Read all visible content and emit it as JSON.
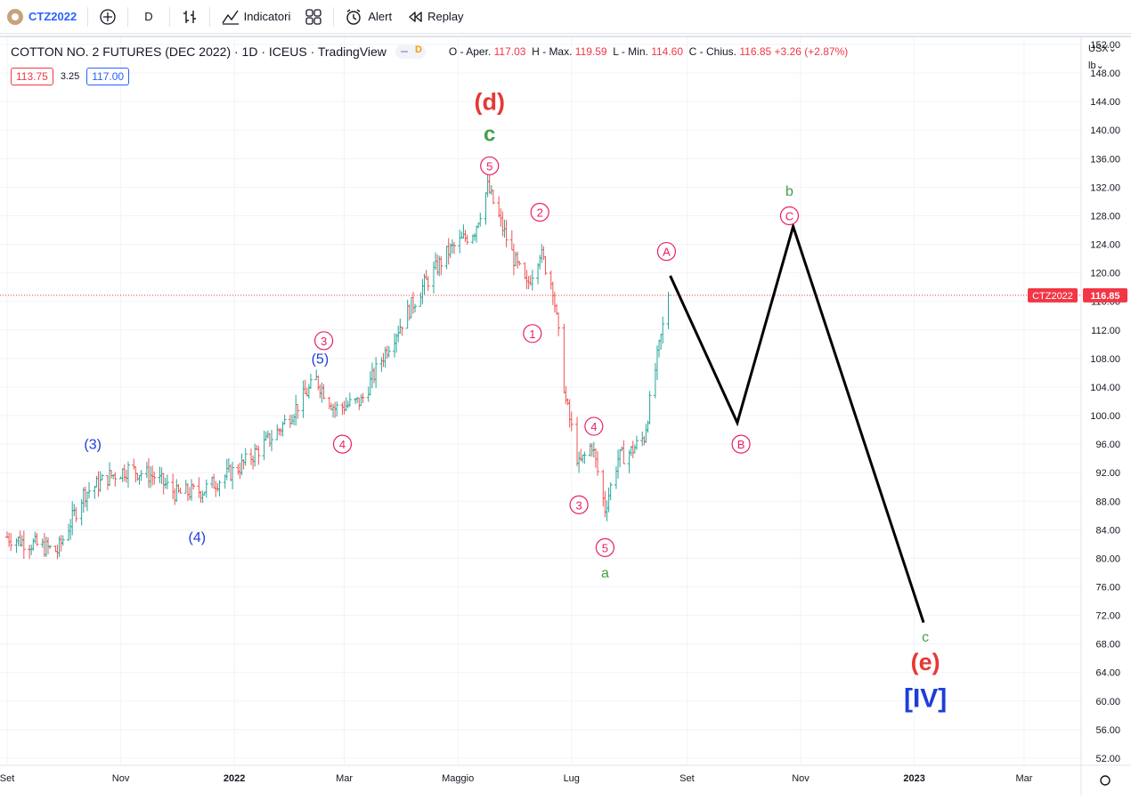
{
  "toolbar": {
    "symbol": "CTZ2022",
    "interval": "D",
    "indicators_label": "Indicatori",
    "alert_label": "Alert",
    "replay_label": "Replay"
  },
  "legend": {
    "title": "COTTON NO. 2 FUTURES (DEC 2022) · 1D · ICEUS · TradingView",
    "badge": "D",
    "o_label": "O - Aper.",
    "o_value": "117.03",
    "h_label": "H - Max.",
    "h_value": "119.59",
    "l_label": "L - Min.",
    "l_value": "114.60",
    "c_label": "C - Chius.",
    "c_value": "116.85",
    "change": "+3.26 (+2.87%)",
    "bid": "113.75",
    "spread": "3.25",
    "ask": "117.00"
  },
  "scale": {
    "currency": "USX",
    "unit": "lb"
  },
  "chart_data": {
    "type": "bar",
    "title": "COTTON NO. 2 FUTURES (DEC 2022)",
    "x_tick_labels": [
      "Set",
      "Nov",
      "2022",
      "Mar",
      "Maggio",
      "Lug",
      "Set",
      "Nov",
      "2023",
      "Mar"
    ],
    "y_ticks": [
      52,
      56,
      60,
      64,
      68,
      72,
      76,
      80,
      84,
      88,
      92,
      96,
      100,
      104,
      108,
      112,
      116,
      120,
      124,
      128,
      132,
      136,
      140,
      144,
      148,
      152
    ],
    "ylim": [
      51,
      152
    ],
    "last_price": 116.85,
    "last_price_label": "CTZ2022",
    "last_price_value": "116.85",
    "price_path_weekly": [
      {
        "x": "2021-09-01",
        "y": 83.0
      },
      {
        "x": "2021-09-15",
        "y": 82.0
      },
      {
        "x": "2021-09-28",
        "y": 81.0
      },
      {
        "x": "2021-10-12",
        "y": 89.0
      },
      {
        "x": "2021-10-26",
        "y": 91.5
      },
      {
        "x": "2021-11-05",
        "y": 92.5
      },
      {
        "x": "2021-11-19",
        "y": 91.5
      },
      {
        "x": "2021-12-01",
        "y": 89.0
      },
      {
        "x": "2021-12-15",
        "y": 89.5
      },
      {
        "x": "2022-01-05",
        "y": 93.0
      },
      {
        "x": "2022-01-25",
        "y": 98.0
      },
      {
        "x": "2022-02-14",
        "y": 105.0
      },
      {
        "x": "2022-02-24",
        "y": 101.0
      },
      {
        "x": "2022-03-10",
        "y": 102.0
      },
      {
        "x": "2022-03-25",
        "y": 110.0
      },
      {
        "x": "2022-04-12",
        "y": 118.0
      },
      {
        "x": "2022-04-26",
        "y": 123.0
      },
      {
        "x": "2022-05-10",
        "y": 126.0
      },
      {
        "x": "2022-05-17",
        "y": 132.0
      },
      {
        "x": "2022-05-31",
        "y": 122.0
      },
      {
        "x": "2022-06-07",
        "y": 118.0
      },
      {
        "x": "2022-06-14",
        "y": 123.0
      },
      {
        "x": "2022-06-21",
        "y": 118.0
      },
      {
        "x": "2022-06-28",
        "y": 102.0
      },
      {
        "x": "2022-07-05",
        "y": 93.0
      },
      {
        "x": "2022-07-12",
        "y": 96.0
      },
      {
        "x": "2022-07-19",
        "y": 87.0
      },
      {
        "x": "2022-07-26",
        "y": 94.0
      },
      {
        "x": "2022-08-02",
        "y": 95.0
      },
      {
        "x": "2022-08-09",
        "y": 97.0
      },
      {
        "x": "2022-08-16",
        "y": 108.0
      },
      {
        "x": "2022-08-22",
        "y": 116.85
      }
    ],
    "projection": [
      {
        "x": "2022-08-23",
        "y": 119.6
      },
      {
        "x": "2022-09-28",
        "y": 99.0
      },
      {
        "x": "2022-10-28",
        "y": 126.5
      },
      {
        "x": "2023-01-06",
        "y": 71.0
      }
    ],
    "annotations": [
      {
        "text": "(3)",
        "x": "2021-10-17",
        "y": 96.0,
        "color": "#1e3ed6",
        "style": "plain"
      },
      {
        "text": "(4)",
        "x": "2021-12-12",
        "y": 83.0,
        "color": "#1e3ed6",
        "style": "plain"
      },
      {
        "text": "(5)",
        "x": "2022-02-16",
        "y": 108.0,
        "color": "#1e3ed6",
        "style": "plain"
      },
      {
        "text": "3",
        "x": "2022-02-18",
        "y": 110.5,
        "color": "#e91e63",
        "style": "circle"
      },
      {
        "text": "4",
        "x": "2022-02-28",
        "y": 96.0,
        "color": "#e91e63",
        "style": "circle"
      },
      {
        "text": "(d)",
        "x": "2022-05-18",
        "y": 144.0,
        "color": "#e53935",
        "style": "bigbold"
      },
      {
        "text": "c",
        "x": "2022-05-18",
        "y": 139.5,
        "color": "#43a047",
        "style": "green"
      },
      {
        "text": "5",
        "x": "2022-05-18",
        "y": 135.0,
        "color": "#e91e63",
        "style": "circle"
      },
      {
        "text": "2",
        "x": "2022-06-14",
        "y": 128.5,
        "color": "#e91e63",
        "style": "circle"
      },
      {
        "text": "1",
        "x": "2022-06-10",
        "y": 111.5,
        "color": "#e91e63",
        "style": "circle"
      },
      {
        "text": "A",
        "x": "2022-08-21",
        "y": 123.0,
        "color": "#e91e63",
        "style": "circle"
      },
      {
        "text": "4",
        "x": "2022-07-13",
        "y": 98.5,
        "color": "#e91e63",
        "style": "circle"
      },
      {
        "text": "3",
        "x": "2022-07-05",
        "y": 87.5,
        "color": "#e91e63",
        "style": "circle"
      },
      {
        "text": "5",
        "x": "2022-07-19",
        "y": 81.5,
        "color": "#e91e63",
        "style": "circle"
      },
      {
        "text": "a",
        "x": "2022-07-19",
        "y": 78.0,
        "color": "#43a047",
        "style": "greensmall"
      },
      {
        "text": "B",
        "x": "2022-09-30",
        "y": 96.0,
        "color": "#e91e63",
        "style": "circle"
      },
      {
        "text": "b",
        "x": "2022-10-26",
        "y": 131.5,
        "color": "#43a047",
        "style": "greensmall"
      },
      {
        "text": "C",
        "x": "2022-10-26",
        "y": 128.0,
        "color": "#e91e63",
        "style": "circle"
      },
      {
        "text": "c",
        "x": "2023-01-07",
        "y": 69.0,
        "color": "#43a047",
        "style": "greensmall"
      },
      {
        "text": "(e)",
        "x": "2023-01-07",
        "y": 65.5,
        "color": "#e53935",
        "style": "bigbold"
      },
      {
        "text": "[IV]",
        "x": "2023-01-07",
        "y": 60.5,
        "color": "#1e3ed6",
        "style": "bigblue"
      }
    ]
  }
}
